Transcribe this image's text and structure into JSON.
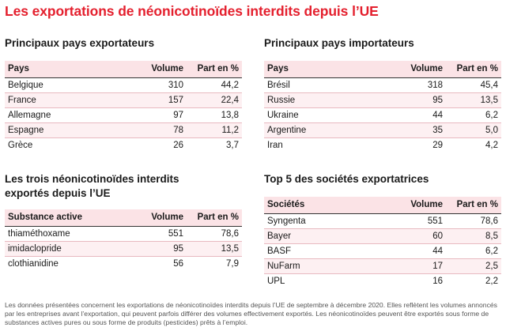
{
  "title": "Les exportations de néonicotinoïdes interdits depuis l’UE",
  "exporters": {
    "title": "Principaux pays exportateurs",
    "headers": [
      "Pays",
      "Volume",
      "Part en %"
    ],
    "rows": [
      [
        "Belgique",
        "310",
        "44,2"
      ],
      [
        "France",
        "157",
        "22,4"
      ],
      [
        "Allemagne",
        "97",
        "13,8"
      ],
      [
        "Espagne",
        "78",
        "11,2"
      ],
      [
        "Grèce",
        "26",
        "3,7"
      ]
    ]
  },
  "importers": {
    "title": "Principaux pays importateurs",
    "headers": [
      "Pays",
      "Volume",
      "Part en %"
    ],
    "rows": [
      [
        "Brésil",
        "318",
        "45,4"
      ],
      [
        "Russie",
        "95",
        "13,5"
      ],
      [
        "Ukraine",
        "44",
        "6,2"
      ],
      [
        "Argentine",
        "35",
        "5,0"
      ],
      [
        "Iran",
        "29",
        "4,2"
      ]
    ]
  },
  "substances": {
    "title_line1": "Les trois néonicotinoïdes interdits",
    "title_line2": "exportés depuis l’UE",
    "headers": [
      "Substance active",
      "Volume",
      "Part en %"
    ],
    "rows": [
      [
        "thiaméthoxame",
        "551",
        "78,6"
      ],
      [
        "imidaclopride",
        "95",
        "13,5"
      ],
      [
        "clothianidine",
        "56",
        "7,9"
      ]
    ]
  },
  "companies": {
    "title": "Top 5 des sociétés exportatrices",
    "headers": [
      "Sociétés",
      "Volume",
      "Part en %"
    ],
    "rows": [
      [
        "Syngenta",
        "551",
        "78,6"
      ],
      [
        "Bayer",
        "60",
        "8,5"
      ],
      [
        "BASF",
        "44",
        "6,2"
      ],
      [
        "NuFarm",
        "17",
        "2,5"
      ],
      [
        "UPL",
        "16",
        "2,2"
      ]
    ]
  },
  "footnote": "Les données présentées concernent les exportations de néonicotinoïdes interdits depuis l’UE de septembre à décembre 2020. Elles reflètent les volumes annoncés par les entreprises avant l’exportation, qui peuvent parfois différer des volumes effectivement exportés. Les néonicotinoïdes peuvent être exportés sous forme de substances actives pures ou sous forme de produits (pesticides) prêts à l’emploi."
}
